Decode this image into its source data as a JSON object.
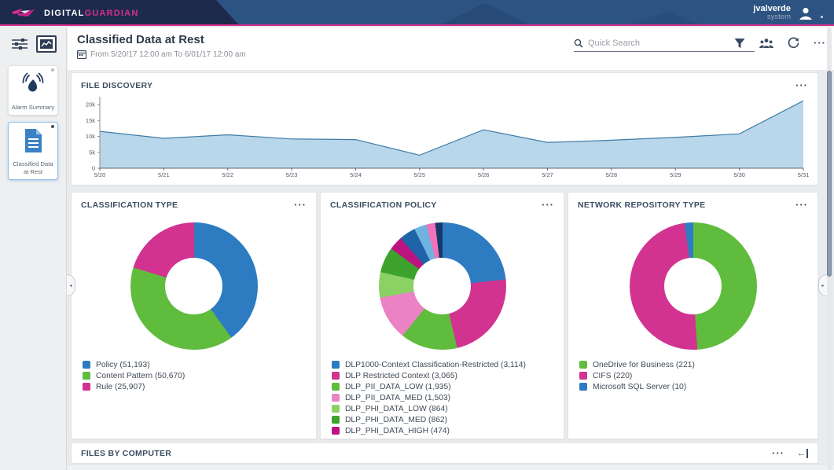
{
  "header": {
    "brand": {
      "word1": "DIGITAL",
      "word2": "GUARDIAN"
    },
    "user": {
      "name": "jvalverde",
      "role": "system"
    }
  },
  "sidebar": {
    "cards": [
      {
        "label": "Alarm Summary"
      },
      {
        "label": "Classified Data at Rest"
      }
    ]
  },
  "toolbar": {
    "title": "Classified Data at Rest",
    "date_range": "From 5/20/17 12:00 am To 6/01/17 12:00 am",
    "search_placeholder": "Quick Search"
  },
  "panels": {
    "file_discovery": "FILE DISCOVERY",
    "classification_type": "CLASSIFICATION TYPE",
    "classification_policy": "CLASSIFICATION POLICY",
    "network_repository": "NETWORK REPOSITORY TYPE",
    "files_by_computer": "FILES BY COMPUTER"
  },
  "colors": {
    "accent_pink": "#d62f8c",
    "header_navy": "#1d2a4e",
    "header_steel": "#2d5382",
    "area_fill": "#b5d5e9",
    "area_line": "#3e7ca6"
  },
  "chart_data": [
    {
      "type": "area",
      "title": "FILE DISCOVERY",
      "x": [
        "5/20",
        "5/21",
        "5/22",
        "5/23",
        "5/24",
        "5/25",
        "5/26",
        "5/27",
        "5/28",
        "5/29",
        "5/30",
        "5/31"
      ],
      "values": [
        11600,
        9400,
        10500,
        9200,
        9000,
        4100,
        12100,
        8100,
        8800,
        9700,
        10800,
        21200
      ],
      "yticks": [
        0,
        5000,
        10000,
        15000,
        20000
      ],
      "ytick_labels": [
        "0",
        "5k",
        "10k",
        "15k",
        "20k"
      ],
      "ylim": [
        0,
        22500
      ],
      "xlabel": "",
      "ylabel": "",
      "grid": false,
      "legend_position": "none",
      "fill": "#b5d5e9",
      "line": "#3e7ca6"
    },
    {
      "type": "pie",
      "donut": true,
      "title": "CLASSIFICATION TYPE",
      "slices": [
        {
          "label": "Policy",
          "value": 51193,
          "text": "Policy (51,193)",
          "color": "#2d7cc1"
        },
        {
          "label": "Content Pattern",
          "value": 50670,
          "text": "Content Pattern (50,670)",
          "color": "#60bc3d"
        },
        {
          "label": "Rule",
          "value": 25907,
          "text": "Rule (25,907)",
          "color": "#d23390"
        }
      ]
    },
    {
      "type": "pie",
      "donut": true,
      "title": "CLASSIFICATION POLICY",
      "slices": [
        {
          "label": "DLP1000-Context Classification-Restricted",
          "value": 3114,
          "text": "DLP1000-Context Classification-Restricted (3,114)",
          "color": "#2d7cc1"
        },
        {
          "label": "DLP Restricted Context",
          "value": 3065,
          "text": "DLP Restricted Context (3,065)",
          "color": "#d23390"
        },
        {
          "label": "DLP_PII_DATA_LOW",
          "value": 1935,
          "text": "DLP_PII_DATA_LOW (1,935)",
          "color": "#60bc3d"
        },
        {
          "label": "DLP_PII_DATA_MED",
          "value": 1503,
          "text": "DLP_PII_DATA_MED (1,503)",
          "color": "#ea82c4"
        },
        {
          "label": "DLP_PHI_DATA_LOW",
          "value": 864,
          "text": "DLP_PHI_DATA_LOW (864)",
          "color": "#8bd163"
        },
        {
          "label": "DLP_PHI_DATA_MED",
          "value": 862,
          "text": "DLP_PHI_DATA_MED (862)",
          "color": "#3da32c"
        },
        {
          "label": "DLP_PHI_DATA_HIGH",
          "value": 474,
          "text": "DLP_PHI_DATA_HIGH (474)",
          "color": "#bc1380"
        }
      ],
      "unlabeled_slices": [
        {
          "value": 560,
          "color": "#1f63a8"
        },
        {
          "value": 420,
          "color": "#6fb3e0"
        },
        {
          "value": 300,
          "color": "#f272bb"
        },
        {
          "value": 250,
          "color": "#173a6a"
        }
      ]
    },
    {
      "type": "pie",
      "donut": true,
      "title": "NETWORK REPOSITORY TYPE",
      "slices": [
        {
          "label": "OneDrive for Business",
          "value": 221,
          "text": "OneDrive for Business (221)",
          "color": "#60bc3d"
        },
        {
          "label": "CIFS",
          "value": 220,
          "text": "CIFS (220)",
          "color": "#d23390"
        },
        {
          "label": "Microsoft SQL Server",
          "value": 10,
          "text": "Microsoft SQL Server (10)",
          "color": "#2d7cc1"
        }
      ]
    }
  ]
}
